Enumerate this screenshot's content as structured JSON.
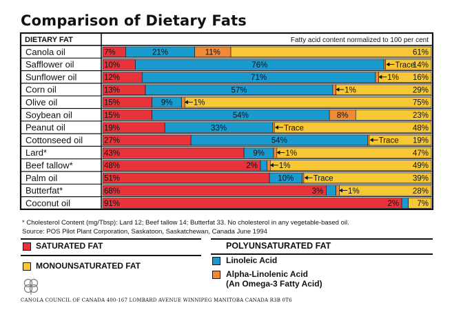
{
  "page_title": "Comparison of Dietary Fats",
  "chart_data": {
    "type": "bar",
    "orientation": "horizontal-stacked-100",
    "title": "Comparison of Dietary Fats",
    "row_header": "DIETARY FAT",
    "column_header": "Fatty acid content normalized to 100 per cent",
    "categories": [
      "Canola oil",
      "Safflower oil",
      "Sunflower oil",
      "Corn oil",
      "Olive oil",
      "Soybean oil",
      "Peanut oil",
      "Cottonseed oil",
      "Lard*",
      "Beef tallow*",
      "Palm oil",
      "Butterfat*",
      "Coconut oil"
    ],
    "series": [
      {
        "name": "SATURATED FAT",
        "color": "#e8333b",
        "values": [
          7,
          10,
          12,
          13,
          15,
          15,
          19,
          27,
          43,
          48,
          51,
          68,
          91
        ]
      },
      {
        "name": "Linoleic Acid",
        "color": "#1a9bd0",
        "values": [
          21,
          76,
          71,
          57,
          9,
          54,
          33,
          54,
          9,
          2,
          10,
          3,
          2
        ]
      },
      {
        "name": "Alpha-Linolenic Acid",
        "color": "#f08a34",
        "values": [
          11,
          0.5,
          1,
          1,
          1,
          8,
          0.5,
          0.5,
          1,
          1,
          0.5,
          1,
          0
        ]
      },
      {
        "name": "MONOUNSATURATED FAT",
        "color": "#f8c735",
        "values": [
          61,
          14,
          16,
          29,
          75,
          23,
          48,
          19,
          47,
          49,
          39,
          28,
          7
        ]
      }
    ],
    "segment_labels": [
      [
        "7%",
        "21%",
        "11%",
        "61%"
      ],
      [
        "10%",
        "76%",
        "Trace",
        "14%"
      ],
      [
        "12%",
        "71%",
        "1%",
        "16%"
      ],
      [
        "13%",
        "57%",
        "1%",
        "29%"
      ],
      [
        "15%",
        "9%",
        "1%",
        "75%"
      ],
      [
        "15%",
        "54%",
        "8%",
        "23%"
      ],
      [
        "19%",
        "33%",
        "Trace",
        "48%"
      ],
      [
        "27%",
        "54%",
        "Trace",
        "19%"
      ],
      [
        "43%",
        "9%",
        "1%",
        "47%"
      ],
      [
        "48%",
        "2%",
        "1%",
        "49%"
      ],
      [
        "51%",
        "10%",
        "Trace",
        "39%"
      ],
      [
        "68%",
        "3%",
        "1%",
        "28%"
      ],
      [
        "91%",
        "2%",
        "",
        "7%"
      ]
    ],
    "xlim": [
      0,
      100
    ]
  },
  "footnotes": {
    "cholesterol": "* Cholesterol Content (mg/Tbsp): Lard 12; Beef tallow 14; Butterfat 33. No cholesterol in any vegetable-based oil.",
    "source": "Source: POS Pilot Plant Corporation, Saskatoon, Saskatchewan, Canada June 1994"
  },
  "legend": {
    "saturated": "SATURATED FAT",
    "monounsaturated": "MONOUNSATURATED FAT",
    "polyunsaturated_heading": "POLYUNSATURATED FAT",
    "linoleic": "Linoleic Acid",
    "alpha_line1": "Alpha-Linolenic Acid",
    "alpha_line2": "(An Omega-3 Fatty Acid)",
    "colors": {
      "saturated": "#e8333b",
      "monounsaturated": "#f8c735",
      "linoleic": "#1a9bd0",
      "alpha": "#f08a34"
    }
  },
  "footer": {
    "organization": "CANOLA COUNCIL OF CANADA 400-167 LOMBARD AVENUE WINNIPEG MANITOBA CANADA R3B 0T6",
    "logo_icon": "canola-flower-logo"
  }
}
